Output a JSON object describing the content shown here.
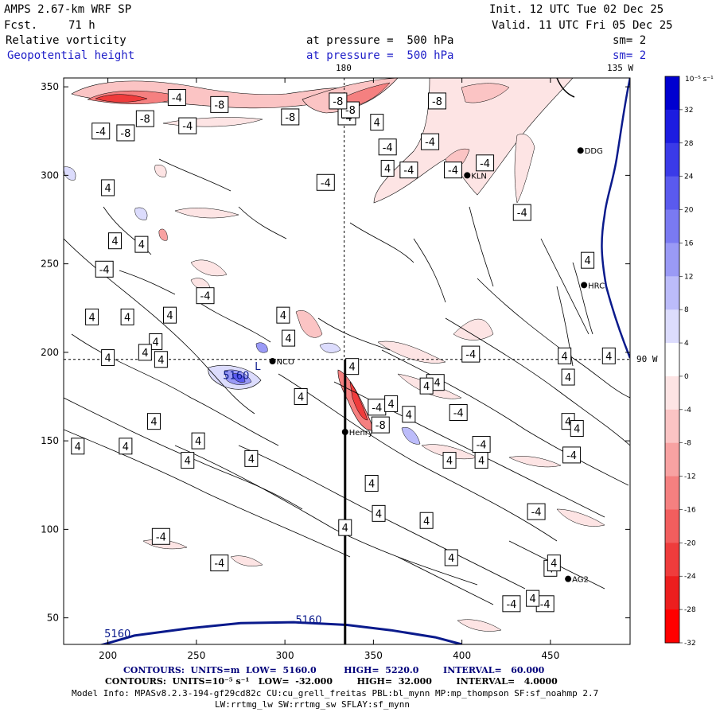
{
  "header": {
    "model": "AMPS 2.67-km WRF SP",
    "fcst_label": "Fcst.",
    "fcst_value": "71 h",
    "init": "Init. 12 UTC Tue 02 Dec 25",
    "valid": "Valid. 11 UTC Fri 05 Dec 25",
    "field1": "Relative vorticity",
    "field2": "Geopotential height",
    "pressure1": "at pressure =  500 hPa",
    "pressure2": "at pressure =  500 hPa",
    "sm1": "sm= 2",
    "sm2": "sm= 2",
    "top_lon_180": "180",
    "top_lon_135": "135 W",
    "right_lat_90": "90 W"
  },
  "footer": {
    "line1": "CONTOURS:  UNITS=m  LOW=  5160.0         HIGH=  5220.0        INTERVAL=   60.000",
    "line2": "CONTOURS:  UNITS=10⁻⁵ s⁻¹   LOW=  -32.000        HIGH=  32.000        INTERVAL=   4.0000",
    "line3": "Model Info: MPASv8.2.3-194-gf29cd82c CU:cu_grell_freitas PBL:bl_mynn MP:mp_thompson SF:sf_noahmp 2.7",
    "line4": "LW:rrtmg_lw SW:rrtmg_sw SFLAY:sf_mynn"
  },
  "colors": {
    "height_contour": "#0a1a8c",
    "neg_vort": "#ff3b3b",
    "pos_vort": "#1e3cff",
    "contour_line": "#000000"
  },
  "chart_data": {
    "type": "heatmap",
    "title": "",
    "xlabel": "",
    "ylabel": "",
    "xlim": [
      175,
      495
    ],
    "ylim": [
      35,
      355
    ],
    "x_ticks": [
      200,
      250,
      300,
      350,
      400,
      450
    ],
    "y_ticks": [
      50,
      100,
      150,
      200,
      250,
      300,
      350
    ],
    "grid": false,
    "colorbar": {
      "units": "10⁻⁵ s⁻¹",
      "ticks": [
        32,
        28,
        24,
        20,
        16,
        12,
        8,
        4,
        0,
        -4,
        -8,
        -12,
        -16,
        -20,
        -24,
        -28,
        -32
      ],
      "colors": [
        "#0000d0",
        "#1c1ce0",
        "#3a3ae8",
        "#5a5aee",
        "#7a7af2",
        "#9a9af6",
        "#bcbcfa",
        "#dcdcfd",
        "#ffffff",
        "#fde4e4",
        "#fbc4c4",
        "#f8a2a2",
        "#f58080",
        "#f25e5e",
        "#ef3c3c",
        "#ec1e1e",
        "#ff0000"
      ]
    },
    "height_contours": [
      {
        "label": "5160",
        "points": [
          [
            194,
            34
          ],
          [
            215,
            40
          ],
          [
            245,
            44
          ],
          [
            275,
            47
          ],
          [
            305,
            47.5
          ],
          [
            335,
            46
          ],
          [
            360,
            43
          ],
          [
            385,
            39
          ],
          [
            400,
            35
          ]
        ]
      }
    ],
    "height_label_5160": "5160",
    "height_label_low": "5160",
    "cross_lines": {
      "vertical_x": 333.5,
      "horizontal_y": 196,
      "section_x": 334,
      "section_y_top": 196
    },
    "stations": [
      {
        "name": "DDG",
        "x": 467,
        "y": 314
      },
      {
        "name": "KLN",
        "x": 403,
        "y": 300
      },
      {
        "name": "HRC",
        "x": 469,
        "y": 238
      },
      {
        "name": "NCO",
        "x": 293,
        "y": 195
      },
      {
        "name": "Henry",
        "x": 334,
        "y": 155
      },
      {
        "name": "AG2",
        "x": 460,
        "y": 72
      }
    ],
    "vorticity_labels": [
      {
        "text": "-4",
        "x": 239,
        "y": 344
      },
      {
        "text": "-8",
        "x": 263,
        "y": 340
      },
      {
        "text": "-8",
        "x": 221,
        "y": 332
      },
      {
        "text": "-4",
        "x": 245,
        "y": 328
      },
      {
        "text": "-8",
        "x": 303,
        "y": 333
      },
      {
        "text": "-4",
        "x": 335,
        "y": 333
      },
      {
        "text": "4",
        "x": 352,
        "y": 330
      },
      {
        "text": "-8",
        "x": 337,
        "y": 337
      },
      {
        "text": "-8",
        "x": 330,
        "y": 342
      },
      {
        "text": "-8",
        "x": 386,
        "y": 342
      },
      {
        "text": "-4",
        "x": 196,
        "y": 325
      },
      {
        "text": "-8",
        "x": 210,
        "y": 324
      },
      {
        "text": "-4",
        "x": 358,
        "y": 316
      },
      {
        "text": "4",
        "x": 358,
        "y": 304
      },
      {
        "text": "4",
        "x": 200,
        "y": 293
      },
      {
        "text": "-4",
        "x": 323,
        "y": 296
      },
      {
        "text": "-4",
        "x": 382,
        "y": 319
      },
      {
        "text": "-4",
        "x": 370,
        "y": 303
      },
      {
        "text": "-4",
        "x": 395,
        "y": 303
      },
      {
        "text": "-4",
        "x": 413,
        "y": 307
      },
      {
        "text": "-4",
        "x": 434,
        "y": 279
      },
      {
        "text": "4",
        "x": 204,
        "y": 263
      },
      {
        "text": "-4",
        "x": 198,
        "y": 247
      },
      {
        "text": "4",
        "x": 219,
        "y": 261
      },
      {
        "text": "-4",
        "x": 255,
        "y": 232
      },
      {
        "text": "4",
        "x": 471,
        "y": 252
      },
      {
        "text": "4",
        "x": 191,
        "y": 220
      },
      {
        "text": "4",
        "x": 211,
        "y": 220
      },
      {
        "text": "4",
        "x": 235,
        "y": 221
      },
      {
        "text": "4",
        "x": 299,
        "y": 221
      },
      {
        "text": "4",
        "x": 302,
        "y": 208
      },
      {
        "text": "4",
        "x": 227,
        "y": 206
      },
      {
        "text": "4",
        "x": 221,
        "y": 200
      },
      {
        "text": "4",
        "x": 200,
        "y": 197
      },
      {
        "text": "4",
        "x": 230,
        "y": 196
      },
      {
        "text": "-4",
        "x": 405,
        "y": 199
      },
      {
        "text": "4",
        "x": 458,
        "y": 198
      },
      {
        "text": "4",
        "x": 483,
        "y": 198
      },
      {
        "text": "4",
        "x": 338,
        "y": 192
      },
      {
        "text": "-4",
        "x": 385,
        "y": 183
      },
      {
        "text": "4",
        "x": 460,
        "y": 186
      },
      {
        "text": "4",
        "x": 380,
        "y": 181
      },
      {
        "text": "4",
        "x": 309,
        "y": 175
      },
      {
        "text": "-4",
        "x": 352,
        "y": 169
      },
      {
        "text": "-4",
        "x": 398,
        "y": 166
      },
      {
        "text": "4",
        "x": 360,
        "y": 171
      },
      {
        "text": "4",
        "x": 370,
        "y": 165
      },
      {
        "text": "4",
        "x": 226,
        "y": 161
      },
      {
        "text": "4",
        "x": 460,
        "y": 161
      },
      {
        "text": "4",
        "x": 465,
        "y": 157
      },
      {
        "text": "-8",
        "x": 354,
        "y": 159
      },
      {
        "text": "4",
        "x": 251,
        "y": 150
      },
      {
        "text": "-4",
        "x": 411,
        "y": 148
      },
      {
        "text": "-4",
        "x": 462,
        "y": 142
      },
      {
        "text": "4",
        "x": 183,
        "y": 147
      },
      {
        "text": "4",
        "x": 210,
        "y": 147
      },
      {
        "text": "4",
        "x": 245,
        "y": 139
      },
      {
        "text": "4",
        "x": 281,
        "y": 140
      },
      {
        "text": "4",
        "x": 393,
        "y": 139
      },
      {
        "text": "4",
        "x": 411,
        "y": 139
      },
      {
        "text": "4",
        "x": 349,
        "y": 126
      },
      {
        "text": "-4",
        "x": 442,
        "y": 110
      },
      {
        "text": "4",
        "x": 353,
        "y": 109
      },
      {
        "text": "-4",
        "x": 230,
        "y": 96
      },
      {
        "text": "4",
        "x": 334,
        "y": 101
      },
      {
        "text": "-4",
        "x": 263,
        "y": 81
      },
      {
        "text": "4",
        "x": 380,
        "y": 105
      },
      {
        "text": "4",
        "x": 394,
        "y": 84
      },
      {
        "text": "4",
        "x": 450,
        "y": 78
      },
      {
        "text": "4",
        "x": 452,
        "y": 81
      },
      {
        "text": "-4",
        "x": 428,
        "y": 58
      },
      {
        "text": "-4",
        "x": 447,
        "y": 58
      },
      {
        "text": "4",
        "x": 440,
        "y": 61
      }
    ],
    "low_label": "L",
    "low_position": {
      "x": 283,
      "y": 190
    }
  }
}
